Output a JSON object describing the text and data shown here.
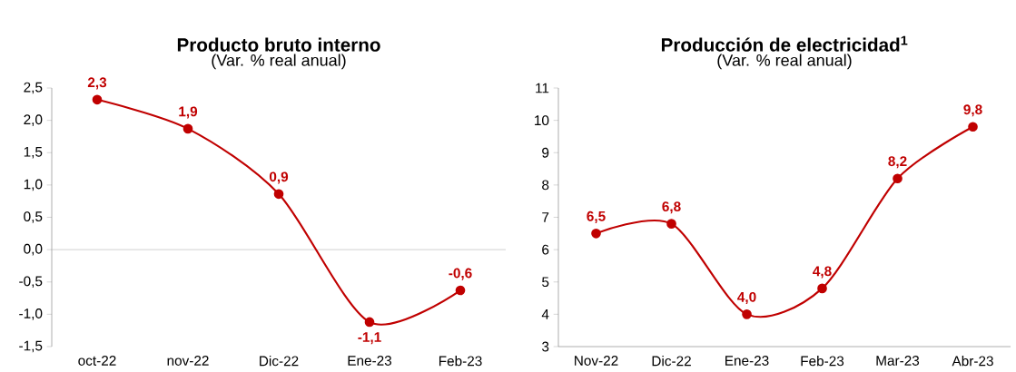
{
  "chart_data": [
    {
      "type": "line",
      "title": "Producto bruto interno",
      "subtitle": "(Var. % real anual)",
      "categories": [
        "oct-22",
        "nov-22",
        "Dic-22",
        "Ene-23",
        "Feb-23"
      ],
      "series": [
        {
          "color": "#c00000",
          "values": [
            2.32,
            1.87,
            0.86,
            -1.12,
            -0.63
          ],
          "value_labels": [
            "2,3",
            "1,9",
            "0,9",
            "-1,1",
            "-0,6"
          ]
        }
      ],
      "ylim": [
        -1.5,
        2.5
      ],
      "yticks": [
        {
          "value": -1.5,
          "label": "-1,5"
        },
        {
          "value": -1.0,
          "label": "-1,0"
        },
        {
          "value": -0.5,
          "label": "-0,5"
        },
        {
          "value": 0,
          "label": "0,0"
        },
        {
          "value": 0.5,
          "label": "0,5"
        },
        {
          "value": 1.0,
          "label": "1,0"
        },
        {
          "value": 1.5,
          "label": "1,5"
        },
        {
          "value": 2.0,
          "label": "2,0"
        },
        {
          "value": 2.5,
          "label": "2,5"
        }
      ],
      "ref_lines": [
        {
          "axis": "y",
          "value": 0,
          "color": "#a6a6a6"
        }
      ],
      "marker": "circle",
      "line_style": "solid"
    },
    {
      "type": "line",
      "title": "Producción de electricidad$^{1}$",
      "subtitle": "(Var. % real anual)",
      "categories": [
        "Nov-22",
        "Dic-22",
        "Ene-23",
        "Feb-23",
        "Mar-23",
        "Abr-23"
      ],
      "series": [
        {
          "color": "#c00000",
          "values": [
            6.5,
            6.8,
            4.0,
            4.8,
            8.2,
            9.8
          ],
          "value_labels": [
            "6,5",
            "6,8",
            "4,0",
            "4,8",
            "8,2",
            "9,8"
          ]
        }
      ],
      "ylim": [
        3,
        11
      ],
      "yticks": [
        3,
        4,
        5,
        6,
        7,
        8,
        9,
        10,
        11
      ],
      "marker": "circle",
      "line_style": "solid"
    }
  ]
}
